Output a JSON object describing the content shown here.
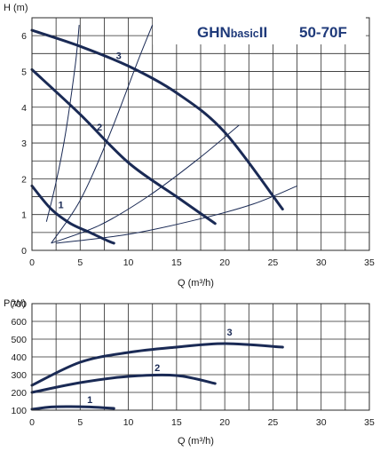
{
  "chart_data": [
    {
      "type": "line",
      "title": "",
      "model": {
        "brand": "GHN",
        "suffix": "basic",
        "series": "II",
        "size": "50-70F"
      },
      "ylabel": "H (m)",
      "xlabel": "Q (m³/h)",
      "xlim": [
        0,
        35
      ],
      "ylim": [
        0,
        6.5
      ],
      "xticks": [
        0,
        5,
        10,
        15,
        20,
        25,
        30,
        35
      ],
      "yticks": [
        0,
        1,
        2,
        3,
        4,
        5,
        6
      ],
      "grid": true,
      "series": [
        {
          "name": "1",
          "x": [
            0,
            2,
            4,
            6,
            8,
            8.5
          ],
          "y": [
            1.8,
            1.15,
            0.75,
            0.5,
            0.25,
            0.2
          ]
        },
        {
          "name": "2",
          "x": [
            0,
            5,
            10,
            15,
            19
          ],
          "y": [
            5.05,
            3.8,
            2.45,
            1.5,
            0.75
          ]
        },
        {
          "name": "3",
          "x": [
            0,
            5,
            10,
            15,
            20,
            26
          ],
          "y": [
            6.15,
            5.7,
            5.15,
            4.4,
            3.3,
            1.15
          ]
        }
      ],
      "system_curves": [
        {
          "x": [
            1.5,
            2.5,
            3.5,
            4.5,
            4.9
          ],
          "y": [
            0.8,
            1.9,
            3.3,
            5.2,
            6.3
          ]
        },
        {
          "x": [
            2,
            5,
            8,
            11,
            12.5
          ],
          "y": [
            0.2,
            1.4,
            3.2,
            5.3,
            6.3
          ]
        },
        {
          "x": [
            2,
            7,
            12,
            17,
            21.5
          ],
          "y": [
            0.2,
            0.7,
            1.5,
            2.5,
            3.5
          ]
        },
        {
          "x": [
            2.5,
            10,
            17,
            23,
            27.5
          ],
          "y": [
            0.2,
            0.45,
            0.85,
            1.3,
            1.8
          ]
        }
      ],
      "curve_labels": [
        {
          "text": "1",
          "x": 3,
          "y": 1.18
        },
        {
          "text": "2",
          "x": 7,
          "y": 3.35
        },
        {
          "text": "3",
          "x": 9,
          "y": 5.35
        }
      ]
    },
    {
      "type": "line",
      "title": "",
      "ylabel": "P(W)",
      "xlabel": "Q (m³/h)",
      "xlim": [
        0,
        35
      ],
      "ylim": [
        100,
        700
      ],
      "xticks": [
        0,
        5,
        10,
        15,
        20,
        25,
        30,
        35
      ],
      "yticks": [
        100,
        200,
        300,
        400,
        500,
        600,
        700
      ],
      "grid": true,
      "series": [
        {
          "name": "1",
          "x": [
            0,
            2,
            4,
            6,
            8.5
          ],
          "y": [
            105,
            118,
            120,
            118,
            110
          ]
        },
        {
          "name": "2",
          "x": [
            0,
            5,
            10,
            15,
            19
          ],
          "y": [
            200,
            255,
            290,
            295,
            250
          ]
        },
        {
          "name": "3",
          "x": [
            0,
            5,
            10,
            15,
            20,
            26
          ],
          "y": [
            240,
            370,
            425,
            455,
            475,
            455
          ]
        }
      ],
      "curve_labels": [
        {
          "text": "1",
          "x": 6,
          "y": 140
        },
        {
          "text": "2",
          "x": 13,
          "y": 320
        },
        {
          "text": "3",
          "x": 20.5,
          "y": 520
        }
      ]
    }
  ]
}
